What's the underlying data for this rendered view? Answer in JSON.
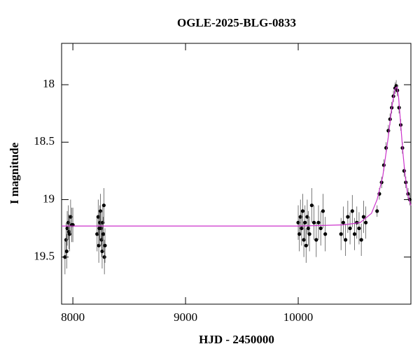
{
  "chart_data": {
    "type": "scatter",
    "title": "OGLE-2025-BLG-0833",
    "x_label": "HJD - 2450000",
    "y_label": "I magnitude",
    "xlim": [
      7900,
      11000
    ],
    "ylim": [
      19.91,
      17.64
    ],
    "xticks": [
      8000,
      9000,
      10000
    ],
    "yticks": [
      18,
      18.5,
      19,
      19.5
    ],
    "series": [
      {
        "color": "#000000",
        "x": [
          7930,
          7940,
          7945,
          7950,
          7960,
          7965,
          7970,
          7980,
          7990,
          8000,
          8215,
          8225,
          8230,
          8235,
          8240,
          8245,
          8250,
          8255,
          8260,
          8265,
          8270,
          8275,
          8280,
          8285,
          10000,
          10010,
          10020,
          10030,
          10040,
          10050,
          10060,
          10070,
          10080,
          10090,
          10100,
          10120,
          10140,
          10160,
          10180,
          10200,
          10220,
          10240,
          10380,
          10400,
          10420,
          10440,
          10460,
          10480,
          10500,
          10520,
          10540,
          10560,
          10580,
          10600,
          10700,
          10720,
          10740,
          10760,
          10780,
          10800,
          10815,
          10830,
          10845,
          10860,
          10870,
          10880,
          10895,
          10910,
          10925,
          10940,
          10955,
          10975,
          10990
        ],
        "values": [
          19.5,
          19.35,
          19.45,
          19.25,
          19.2,
          19.28,
          19.3,
          19.15,
          19.22,
          19.22,
          19.3,
          19.15,
          19.4,
          19.25,
          19.2,
          19.1,
          19.25,
          19.35,
          19.45,
          19.2,
          19.3,
          19.05,
          19.5,
          19.4,
          19.2,
          19.3,
          19.15,
          19.25,
          19.1,
          19.35,
          19.2,
          19.4,
          19.15,
          19.25,
          19.3,
          19.05,
          19.2,
          19.35,
          19.2,
          19.25,
          19.1,
          19.3,
          19.3,
          19.2,
          19.35,
          19.15,
          19.25,
          19.1,
          19.3,
          19.2,
          19.25,
          19.35,
          19.15,
          19.2,
          19.1,
          18.95,
          18.85,
          18.7,
          18.55,
          18.4,
          18.3,
          18.2,
          18.1,
          18.03,
          18.01,
          18.05,
          18.2,
          18.35,
          18.55,
          18.75,
          18.85,
          18.95,
          19.0
        ],
        "errors": [
          0.15,
          0.15,
          0.15,
          0.15,
          0.15,
          0.15,
          0.15,
          0.15,
          0.15,
          0.15,
          0.15,
          0.15,
          0.15,
          0.15,
          0.15,
          0.15,
          0.15,
          0.15,
          0.15,
          0.15,
          0.15,
          0.15,
          0.15,
          0.15,
          0.15,
          0.15,
          0.15,
          0.15,
          0.15,
          0.15,
          0.15,
          0.15,
          0.15,
          0.15,
          0.15,
          0.15,
          0.15,
          0.15,
          0.15,
          0.15,
          0.15,
          0.15,
          0.14,
          0.14,
          0.14,
          0.14,
          0.14,
          0.14,
          0.14,
          0.14,
          0.14,
          0.14,
          0.14,
          0.14,
          0.05,
          0.05,
          0.05,
          0.05,
          0.05,
          0.05,
          0.05,
          0.05,
          0.05,
          0.05,
          0.05,
          0.05,
          0.05,
          0.05,
          0.05,
          0.05,
          0.05,
          0.05,
          0.05
        ]
      },
      {
        "type": "line",
        "color": "#cc33cc",
        "x": [
          7900,
          10000,
          10400,
          10550,
          10650,
          10700,
          10750,
          10800,
          10830,
          10860,
          10875,
          10890,
          10910,
          10930,
          10950,
          10970,
          11000
        ],
        "values": [
          19.23,
          19.23,
          19.22,
          19.2,
          19.12,
          19.0,
          18.8,
          18.45,
          18.2,
          18.03,
          18.02,
          18.1,
          18.35,
          18.6,
          18.8,
          18.95,
          19.05
        ]
      }
    ]
  }
}
